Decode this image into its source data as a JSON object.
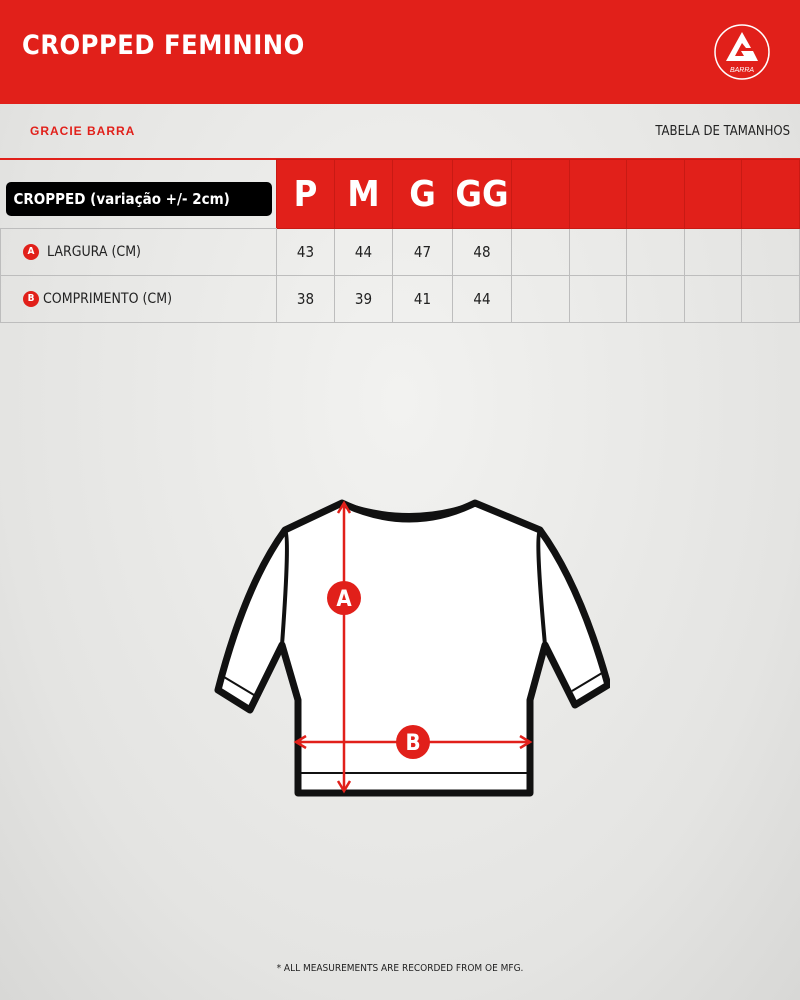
{
  "header": {
    "title": "CROPPED FEMININO",
    "logo_text": "BARRA"
  },
  "brand": "GRACIE BARRA",
  "subtitle": "TABELA DE TAMANHOS",
  "table": {
    "label": "CROPPED  (variação +/- 2cm)",
    "sizes": [
      "P",
      "M",
      "G",
      "GG",
      "",
      "",
      "",
      "",
      ""
    ],
    "rows": [
      {
        "badge": "A",
        "label": "LARGURA (CM)",
        "values": [
          "43",
          "44",
          "47",
          "48",
          "",
          "",
          "",
          "",
          ""
        ]
      },
      {
        "badge": "B",
        "label": "COMPRIMENTO (CM)",
        "values": [
          "38",
          "39",
          "41",
          "44",
          "",
          "",
          "",
          "",
          ""
        ]
      }
    ]
  },
  "diagram": {
    "marker_a": "A",
    "marker_b": "B"
  },
  "footnote": "* ALL MEASUREMENTS ARE RECORDED FROM OE MFG.",
  "colors": {
    "accent": "#e1201a"
  }
}
